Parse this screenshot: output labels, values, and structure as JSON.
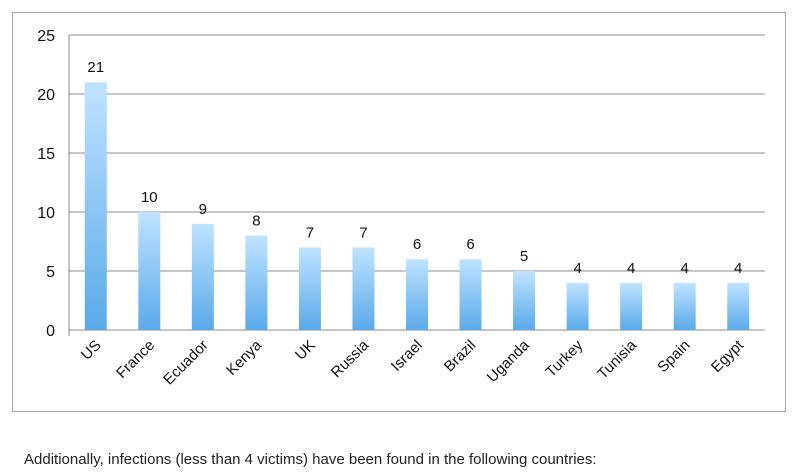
{
  "chart_data": {
    "type": "bar",
    "categories": [
      "US",
      "France",
      "Ecuador",
      "Kenya",
      "UK",
      "Russia",
      "Israel",
      "Brazil",
      "Uganda",
      "Turkey",
      "Tunisia",
      "Spain",
      "Egypt"
    ],
    "values": [
      21,
      10,
      9,
      8,
      7,
      7,
      6,
      6,
      5,
      4,
      4,
      4,
      4
    ],
    "yticks": [
      0,
      5,
      10,
      15,
      20,
      25
    ],
    "ylim": [
      0,
      25
    ],
    "title": "",
    "xlabel": "",
    "ylabel": "",
    "grid": true,
    "bar_color_top": "#bfe3ff",
    "bar_color_bottom": "#5aaaea"
  },
  "footnote": "Additionally, infections (less than 4 victims) have been found in the following countries:"
}
